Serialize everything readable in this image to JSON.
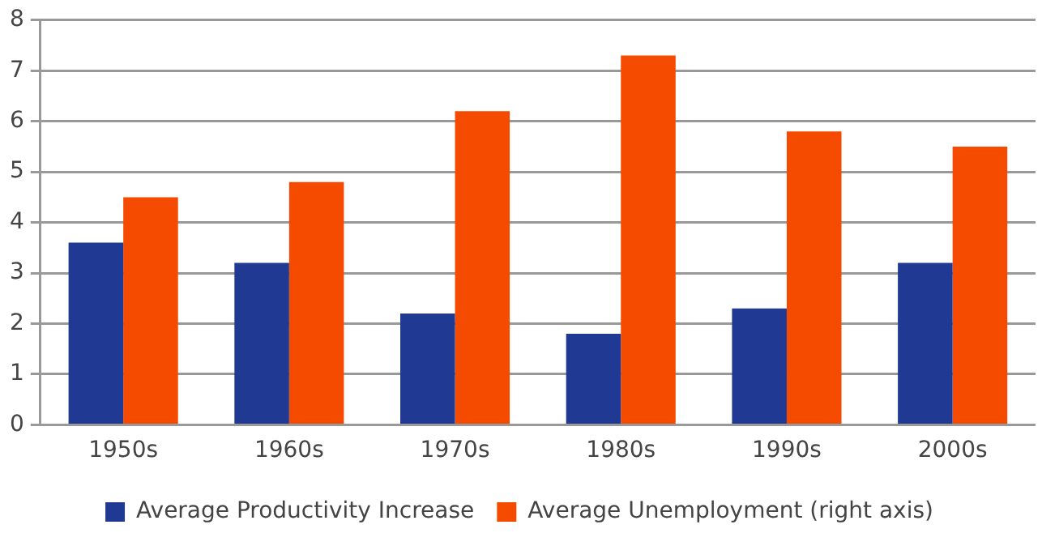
{
  "chart_data": {
    "type": "bar",
    "categories": [
      "1950s",
      "1960s",
      "1970s",
      "1980s",
      "1990s",
      "2000s"
    ],
    "series": [
      {
        "name": "Average Productivity Increase",
        "color": "#203a94",
        "values": [
          3.6,
          3.2,
          2.2,
          1.8,
          2.3,
          3.2
        ]
      },
      {
        "name": "Average Unemployment (right axis)",
        "color": "#f54b00",
        "values": [
          4.5,
          4.8,
          6.2,
          7.3,
          5.8,
          5.5
        ]
      }
    ],
    "ylim": [
      0,
      8
    ],
    "yticks": [
      0,
      1,
      2,
      3,
      4,
      5,
      6,
      7,
      8
    ],
    "grid": "y",
    "legend": "bottom"
  }
}
